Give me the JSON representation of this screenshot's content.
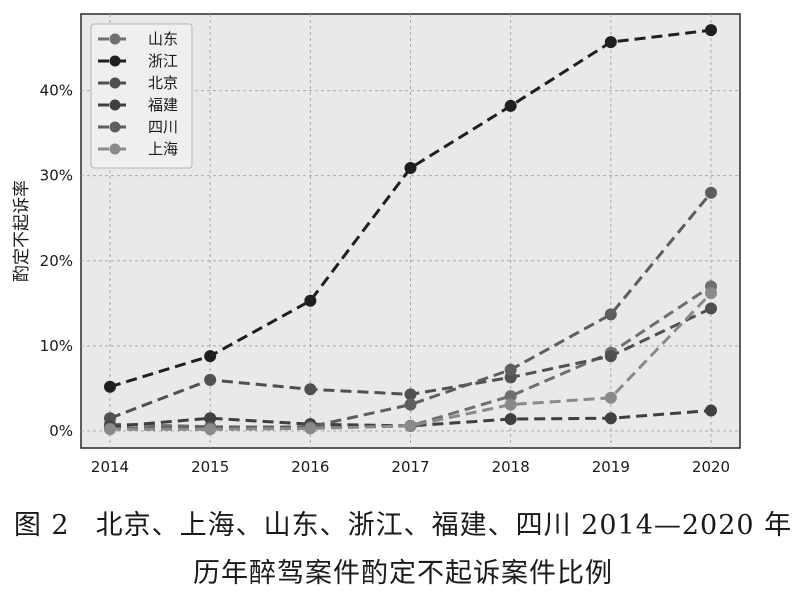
{
  "chart_data": {
    "type": "line",
    "ylabel": "酌定不起诉率",
    "xlabel": "",
    "x": [
      "2014",
      "2015",
      "2016",
      "2017",
      "2018",
      "2019",
      "2020"
    ],
    "yticks": [
      "0%",
      "10%",
      "20%",
      "30%",
      "40%"
    ],
    "ylim": [
      -2,
      49
    ],
    "grid": true,
    "legend_position": "top-left",
    "series": [
      {
        "name": "山东",
        "color": "#6f6f6f",
        "values": [
          0.8,
          0.5,
          0.4,
          0.6,
          4.1,
          9.2,
          17.0
        ]
      },
      {
        "name": "浙江",
        "color": "#1f1f1f",
        "values": [
          5.2,
          8.8,
          15.3,
          30.9,
          38.2,
          45.7,
          47.1
        ]
      },
      {
        "name": "北京",
        "color": "#505050",
        "values": [
          1.5,
          6.0,
          4.9,
          4.3,
          6.3,
          8.8,
          14.4
        ]
      },
      {
        "name": "福建",
        "color": "#3f3f3f",
        "values": [
          0.5,
          1.5,
          0.8,
          0.6,
          1.4,
          1.5,
          2.4
        ]
      },
      {
        "name": "四川",
        "color": "#5e5e5e",
        "values": [
          0.3,
          0.4,
          0.5,
          3.1,
          7.2,
          13.7,
          28.0
        ]
      },
      {
        "name": "上海",
        "color": "#8a8a8a",
        "values": [
          0.2,
          0.2,
          0.3,
          0.6,
          3.1,
          3.9,
          16.2
        ]
      }
    ]
  },
  "caption": {
    "fig_num": "图 2",
    "line1": "北京、上海、山东、浙江、福建、四川 2014—2020 年",
    "line2": "历年醉驾案件酌定不起诉案件比例"
  }
}
